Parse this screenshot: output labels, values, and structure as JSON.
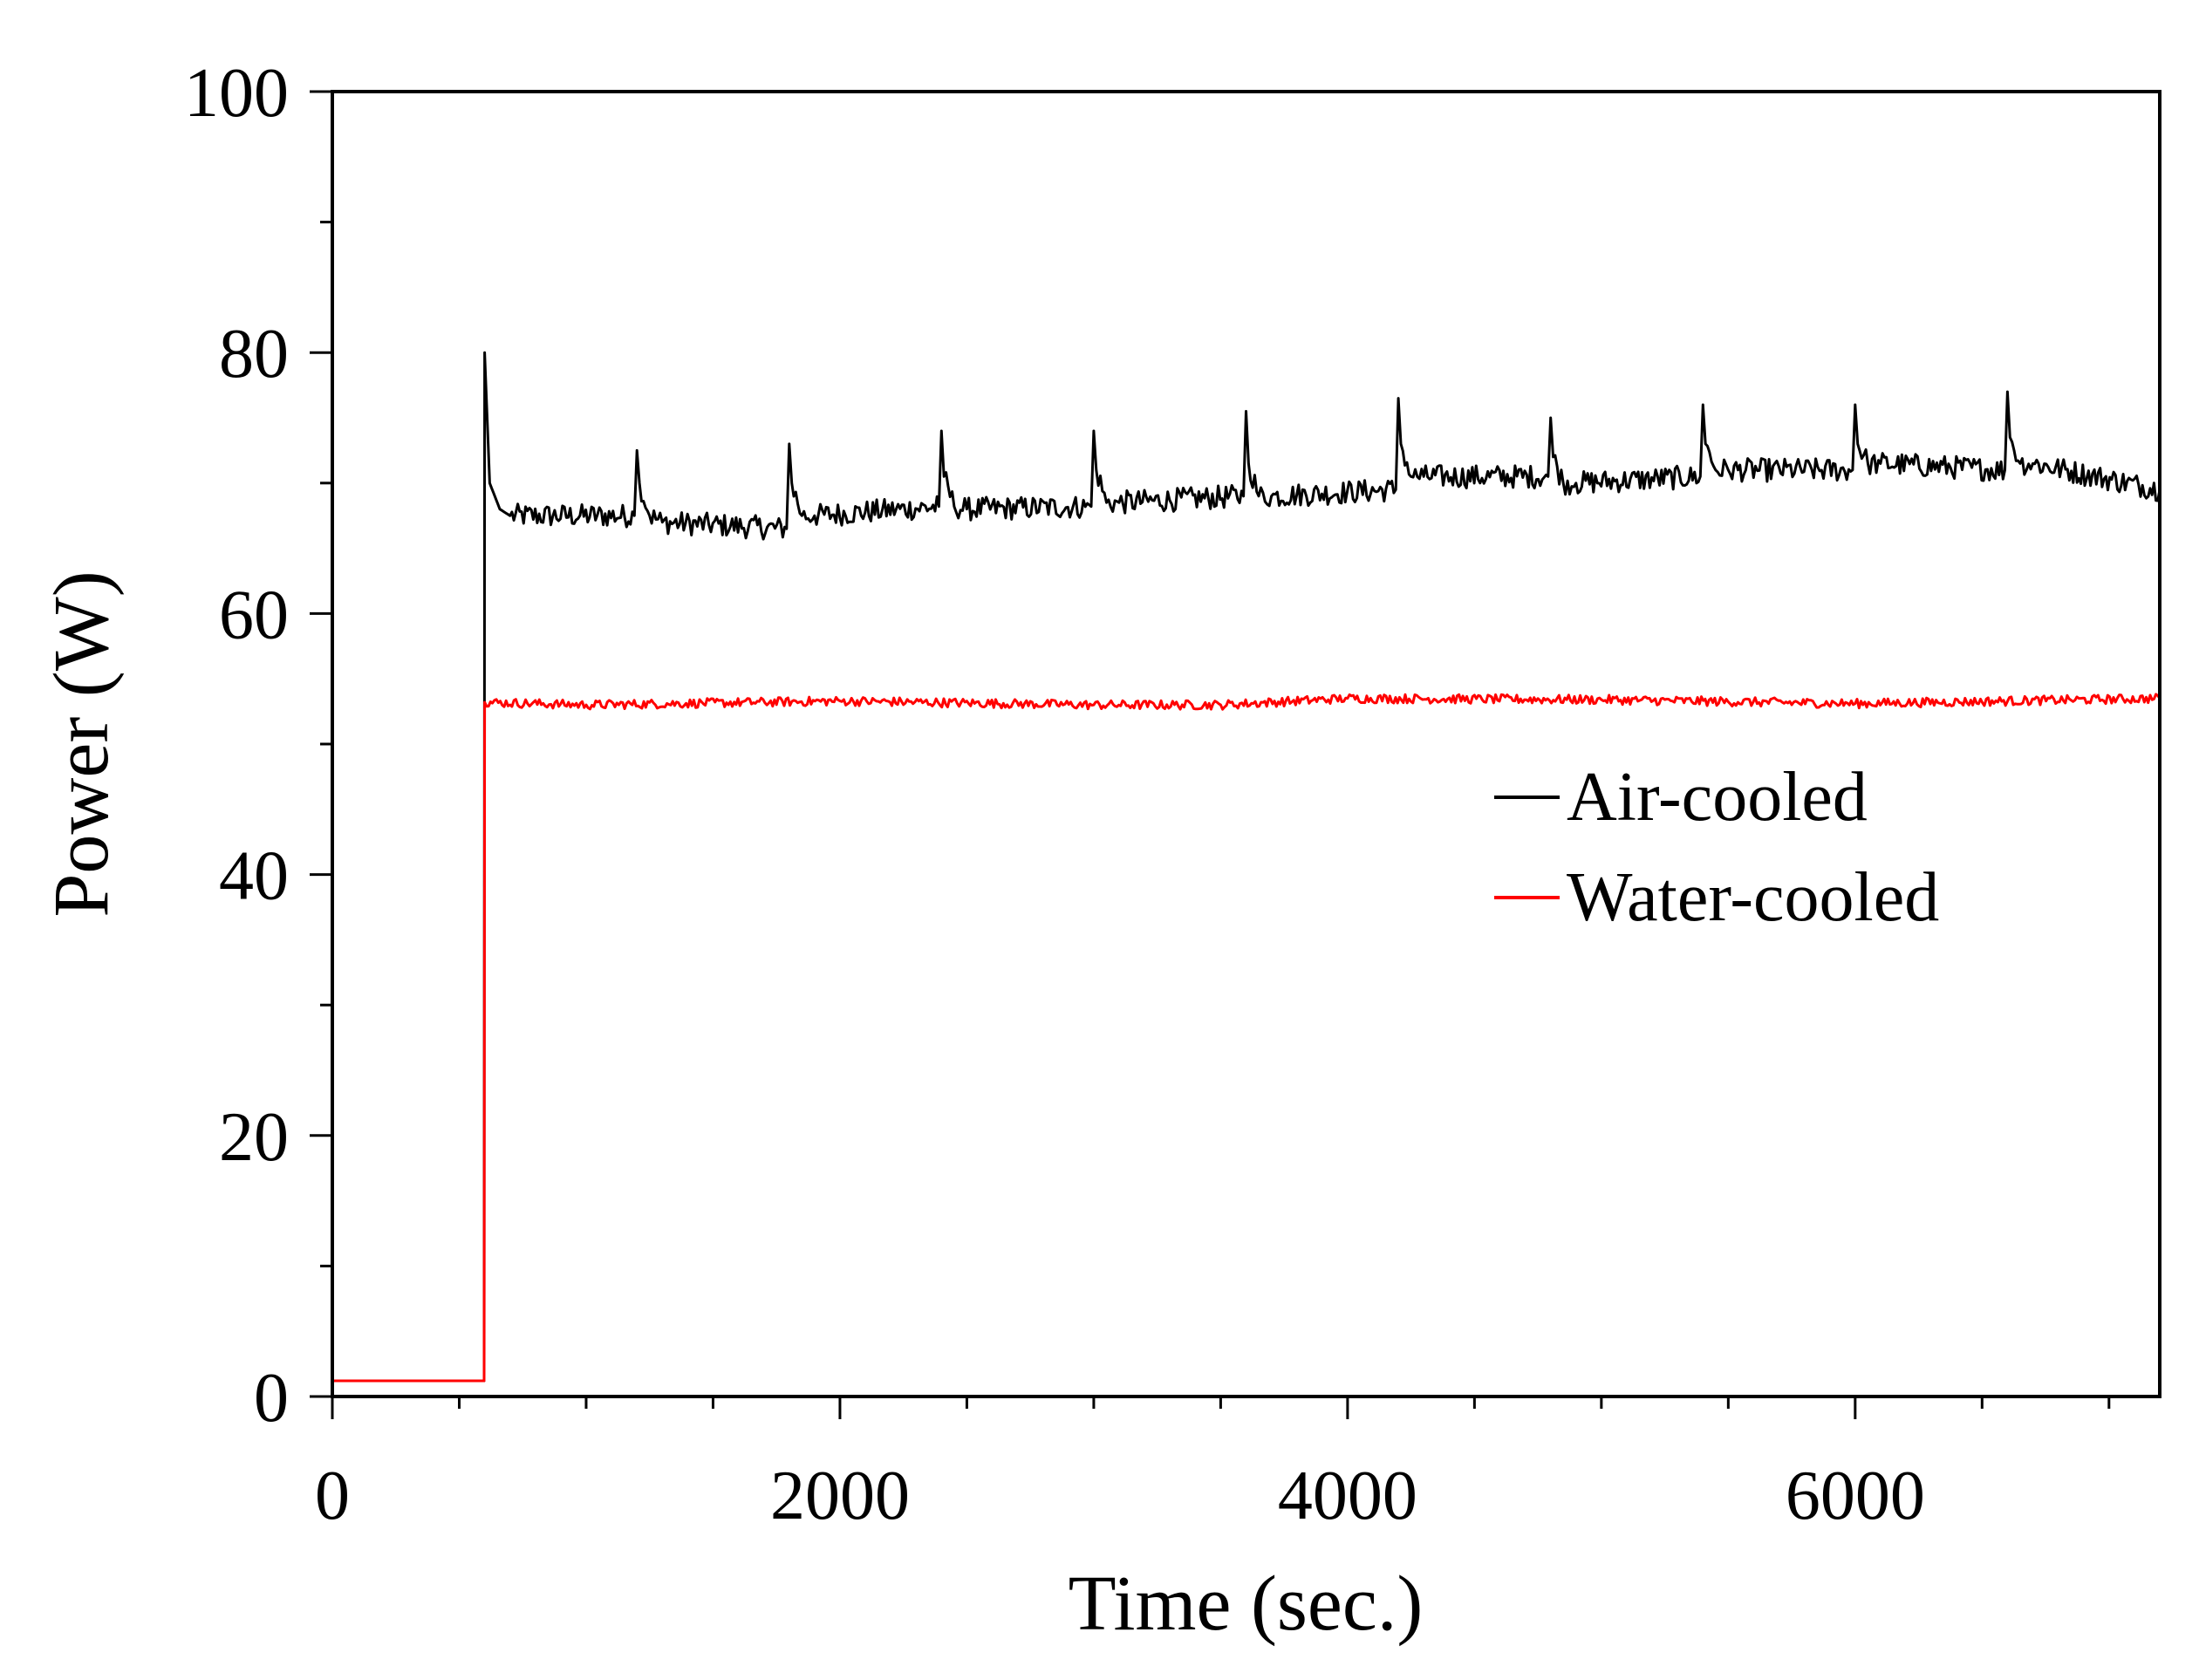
{
  "chart_data": {
    "type": "line",
    "title": "",
    "xlabel": "Time (sec.)",
    "ylabel": "Power (W)",
    "xlim": [
      0,
      7200
    ],
    "ylim": [
      0,
      100
    ],
    "x_ticks": [
      0,
      2000,
      4000,
      6000
    ],
    "x_minor_step": 500,
    "y_ticks": [
      0,
      20,
      40,
      60,
      80,
      100
    ],
    "y_minor_step": 10,
    "grid": false,
    "legend_position": "center-right",
    "series": [
      {
        "name": "Air-cooled",
        "color": "#000000",
        "x": [
          0,
          598,
          600,
          620,
          660,
          700,
          1190,
          1200,
          1210,
          1250,
          1300,
          1790,
          1800,
          1810,
          1850,
          1900,
          2390,
          2400,
          2410,
          2450,
          2500,
          2990,
          3000,
          3010,
          3050,
          3100,
          3590,
          3600,
          3610,
          3650,
          3700,
          4190,
          4200,
          4210,
          4250,
          4300,
          4790,
          4800,
          4810,
          4850,
          4900,
          5390,
          5400,
          5410,
          5450,
          5500,
          5990,
          6000,
          6010,
          6050,
          6100,
          6590,
          6600,
          6610,
          6650,
          6700,
          7200
        ],
        "values": [
          1.2,
          1.2,
          80,
          70,
          68,
          67.5,
          67.5,
          72.5,
          70,
          67.5,
          67,
          66.5,
          73,
          70,
          67.5,
          67.5,
          68.2,
          74,
          70.5,
          68.2,
          68,
          68.2,
          74,
          71,
          68.5,
          68.5,
          69,
          75.5,
          71.5,
          69,
          69,
          69.5,
          76.5,
          73,
          70.5,
          70.5,
          70.5,
          75,
          72,
          70,
          70,
          70.5,
          76,
          73,
          71,
          71,
          71,
          76,
          73,
          71.5,
          71.5,
          71,
          77,
          73.5,
          71.5,
          71.5,
          69.5
        ]
      },
      {
        "name": "Water-cooled",
        "color": "#ff0000",
        "x": [
          0,
          598,
          600,
          1000,
          2000,
          3000,
          3500,
          4000,
          5000,
          6000,
          7200
        ],
        "values": [
          1.2,
          1.2,
          53.2,
          53.0,
          53.3,
          53.0,
          53.0,
          53.5,
          53.4,
          53.1,
          53.5
        ]
      }
    ]
  }
}
